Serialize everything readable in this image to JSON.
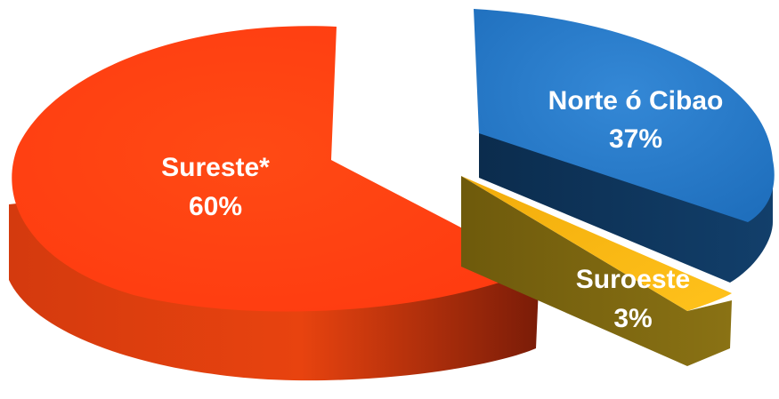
{
  "chart_data": {
    "type": "pie",
    "style": "3d-exploded",
    "legend": "none",
    "slices": [
      {
        "category": "Sureste*",
        "value": 60,
        "label": "60%",
        "color": "#FF4A14",
        "side_color": "#B82E0A"
      },
      {
        "category": "Norte ó Cibao",
        "value": 37,
        "label": "37%",
        "color": "#2C7BC9",
        "side_color": "#0E3357"
      },
      {
        "category": "Suroeste",
        "value": 3,
        "label": "3%",
        "color": "#FFBE1A",
        "side_color": "#7A6410"
      }
    ]
  }
}
